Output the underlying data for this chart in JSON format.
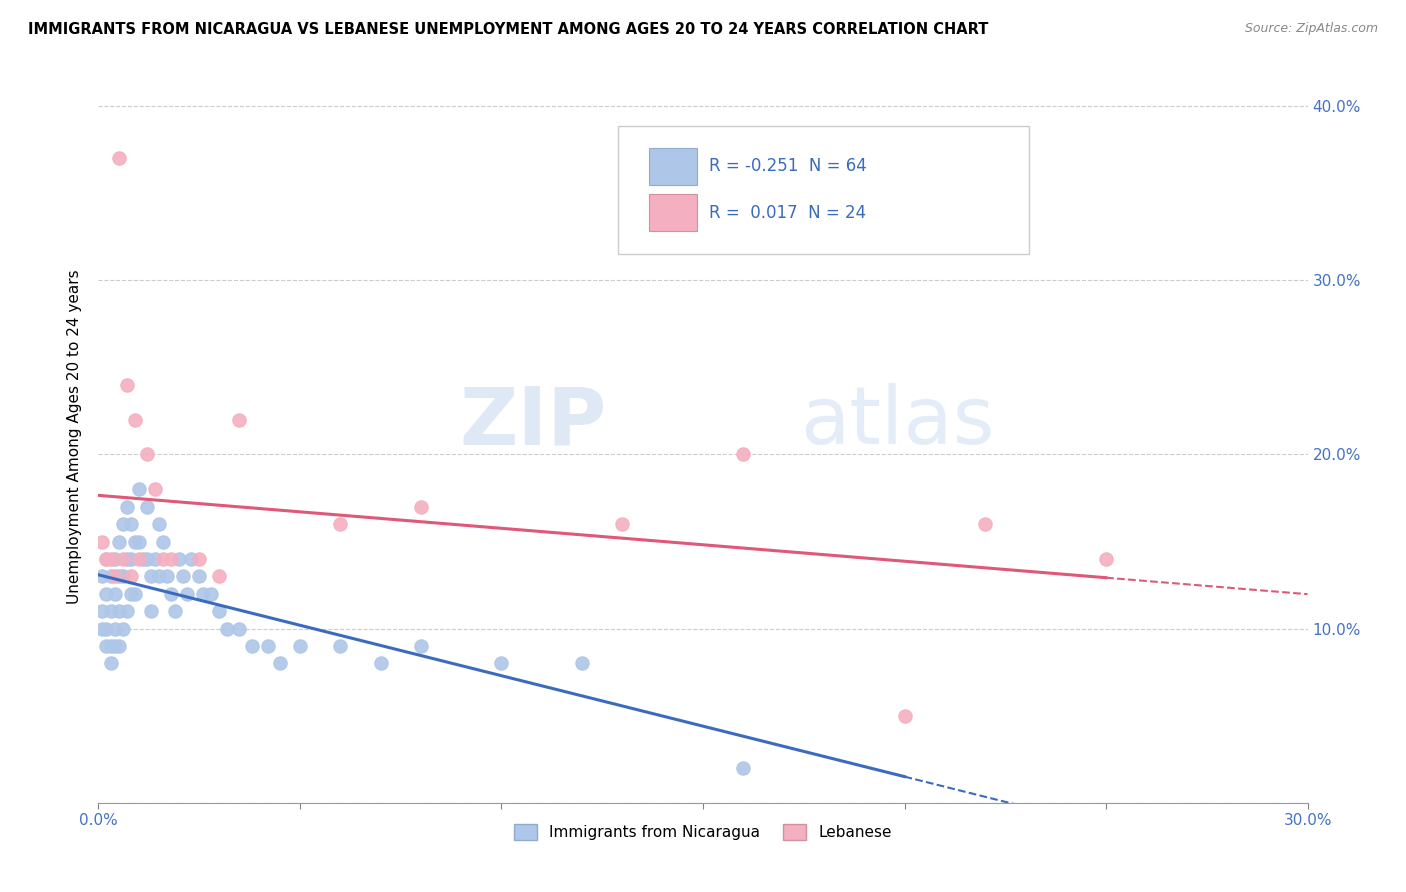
{
  "title": "IMMIGRANTS FROM NICARAGUA VS LEBANESE UNEMPLOYMENT AMONG AGES 20 TO 24 YEARS CORRELATION CHART",
  "source": "Source: ZipAtlas.com",
  "ylabel": "Unemployment Among Ages 20 to 24 years",
  "xlim": [
    0.0,
    0.3
  ],
  "ylim": [
    0.0,
    0.42
  ],
  "xticks": [
    0.0,
    0.05,
    0.1,
    0.15,
    0.2,
    0.25,
    0.3
  ],
  "xtick_labels": [
    "0.0%",
    "",
    "",
    "",
    "",
    "",
    "30.0%"
  ],
  "yticks_right": [
    0.0,
    0.1,
    0.2,
    0.3,
    0.4
  ],
  "ytick_labels_right": [
    "",
    "10.0%",
    "20.0%",
    "30.0%",
    "40.0%"
  ],
  "series1_color": "#aec6e8",
  "series2_color": "#f4afc0",
  "series1_line_color": "#3a6bbf",
  "series2_line_color": "#e05878",
  "r1": -0.251,
  "n1": 64,
  "r2": 0.017,
  "n2": 24,
  "watermark_zip": "ZIP",
  "watermark_atlas": "atlas",
  "legend_series1": "Immigrants from Nicaragua",
  "legend_series2": "Lebanese",
  "blue_scatter_x": [
    0.001,
    0.001,
    0.001,
    0.002,
    0.002,
    0.002,
    0.002,
    0.003,
    0.003,
    0.003,
    0.003,
    0.004,
    0.004,
    0.004,
    0.004,
    0.005,
    0.005,
    0.005,
    0.005,
    0.006,
    0.006,
    0.006,
    0.007,
    0.007,
    0.007,
    0.008,
    0.008,
    0.008,
    0.009,
    0.009,
    0.01,
    0.01,
    0.011,
    0.012,
    0.012,
    0.013,
    0.013,
    0.014,
    0.015,
    0.015,
    0.016,
    0.017,
    0.018,
    0.019,
    0.02,
    0.021,
    0.022,
    0.023,
    0.025,
    0.026,
    0.028,
    0.03,
    0.032,
    0.035,
    0.038,
    0.042,
    0.045,
    0.05,
    0.06,
    0.07,
    0.08,
    0.1,
    0.12,
    0.16
  ],
  "blue_scatter_y": [
    0.13,
    0.11,
    0.1,
    0.14,
    0.12,
    0.1,
    0.09,
    0.13,
    0.11,
    0.09,
    0.08,
    0.14,
    0.12,
    0.1,
    0.09,
    0.15,
    0.13,
    0.11,
    0.09,
    0.16,
    0.13,
    0.1,
    0.17,
    0.14,
    0.11,
    0.16,
    0.14,
    0.12,
    0.15,
    0.12,
    0.18,
    0.15,
    0.14,
    0.17,
    0.14,
    0.13,
    0.11,
    0.14,
    0.16,
    0.13,
    0.15,
    0.13,
    0.12,
    0.11,
    0.14,
    0.13,
    0.12,
    0.14,
    0.13,
    0.12,
    0.12,
    0.11,
    0.1,
    0.1,
    0.09,
    0.09,
    0.08,
    0.09,
    0.09,
    0.08,
    0.09,
    0.08,
    0.08,
    0.02
  ],
  "pink_scatter_x": [
    0.001,
    0.002,
    0.003,
    0.004,
    0.005,
    0.006,
    0.007,
    0.008,
    0.009,
    0.01,
    0.012,
    0.014,
    0.016,
    0.018,
    0.025,
    0.035,
    0.06,
    0.08,
    0.13,
    0.16,
    0.2,
    0.22,
    0.25,
    0.03
  ],
  "pink_scatter_y": [
    0.15,
    0.14,
    0.14,
    0.13,
    0.37,
    0.14,
    0.24,
    0.13,
    0.22,
    0.14,
    0.2,
    0.18,
    0.14,
    0.14,
    0.14,
    0.22,
    0.16,
    0.17,
    0.16,
    0.2,
    0.05,
    0.16,
    0.14,
    0.13
  ]
}
